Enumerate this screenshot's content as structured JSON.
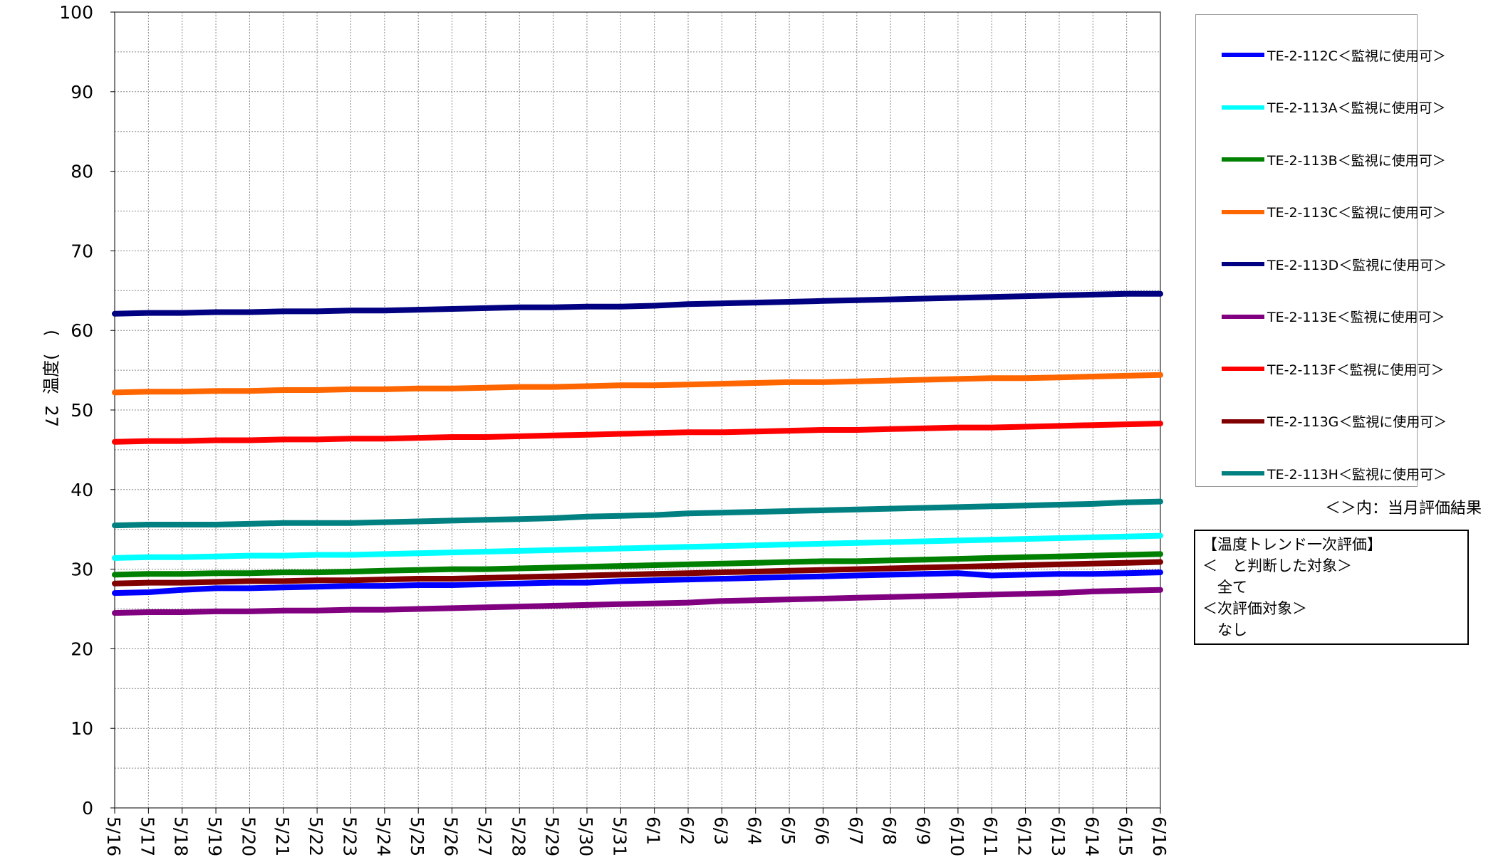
{
  "chart_data": {
    "type": "line",
    "title": "",
    "xlabel": "",
    "ylabel": "温度(　)",
    "ylabel_symbol": "27",
    "ylim": [
      0,
      100
    ],
    "yticks": [
      0,
      10,
      20,
      30,
      40,
      50,
      60,
      70,
      80,
      90,
      100
    ],
    "categories": [
      "5/16",
      "5/17",
      "5/18",
      "5/19",
      "5/20",
      "5/21",
      "5/22",
      "5/23",
      "5/24",
      "5/25",
      "5/26",
      "5/27",
      "5/28",
      "5/29",
      "5/30",
      "5/31",
      "6/1",
      "6/2",
      "6/3",
      "6/4",
      "6/5",
      "6/6",
      "6/7",
      "6/8",
      "6/9",
      "6/10",
      "6/11",
      "6/12",
      "6/13",
      "6/14",
      "6/15",
      "6/16"
    ],
    "grid": true,
    "legend_position": "right",
    "series": [
      {
        "name": "TE-2-112C＜監視に使用可＞",
        "color": "#0000ff",
        "values": [
          27.0,
          27.1,
          27.4,
          27.6,
          27.6,
          27.7,
          27.8,
          27.9,
          27.9,
          28.0,
          28.0,
          28.1,
          28.2,
          28.3,
          28.3,
          28.5,
          28.6,
          28.7,
          28.8,
          28.9,
          29.0,
          29.1,
          29.2,
          29.3,
          29.4,
          29.5,
          29.2,
          29.3,
          29.4,
          29.4,
          29.5,
          29.6
        ]
      },
      {
        "name": "TE-2-113A＜監視に使用可＞",
        "color": "#00ffff",
        "values": [
          31.4,
          31.5,
          31.5,
          31.6,
          31.7,
          31.7,
          31.8,
          31.8,
          31.9,
          32.0,
          32.1,
          32.2,
          32.3,
          32.4,
          32.5,
          32.6,
          32.7,
          32.8,
          32.9,
          33.0,
          33.1,
          33.2,
          33.3,
          33.4,
          33.5,
          33.6,
          33.7,
          33.8,
          33.9,
          34.0,
          34.1,
          34.2
        ]
      },
      {
        "name": "TE-2-113B＜監視に使用可＞",
        "color": "#008000",
        "values": [
          29.3,
          29.4,
          29.4,
          29.5,
          29.5,
          29.6,
          29.6,
          29.7,
          29.8,
          29.9,
          30.0,
          30.0,
          30.1,
          30.2,
          30.3,
          30.4,
          30.5,
          30.6,
          30.7,
          30.8,
          30.9,
          31.0,
          31.0,
          31.1,
          31.2,
          31.3,
          31.4,
          31.5,
          31.6,
          31.7,
          31.8,
          31.9
        ]
      },
      {
        "name": "TE-2-113C＜監視に使用可＞",
        "color": "#ff6600",
        "values": [
          52.2,
          52.3,
          52.3,
          52.4,
          52.4,
          52.5,
          52.5,
          52.6,
          52.6,
          52.7,
          52.7,
          52.8,
          52.9,
          52.9,
          53.0,
          53.1,
          53.1,
          53.2,
          53.3,
          53.4,
          53.5,
          53.5,
          53.6,
          53.7,
          53.8,
          53.9,
          54.0,
          54.0,
          54.1,
          54.2,
          54.3,
          54.4
        ]
      },
      {
        "name": "TE-2-113D＜監視に使用可＞",
        "color": "#000080",
        "values": [
          62.1,
          62.2,
          62.2,
          62.3,
          62.3,
          62.4,
          62.4,
          62.5,
          62.5,
          62.6,
          62.7,
          62.8,
          62.9,
          62.9,
          63.0,
          63.0,
          63.1,
          63.3,
          63.4,
          63.5,
          63.6,
          63.7,
          63.8,
          63.9,
          64.0,
          64.1,
          64.2,
          64.3,
          64.4,
          64.5,
          64.6,
          64.6
        ]
      },
      {
        "name": "TE-2-113E＜監視に使用可＞",
        "color": "#800080",
        "values": [
          24.5,
          24.6,
          24.6,
          24.7,
          24.7,
          24.8,
          24.8,
          24.9,
          24.9,
          25.0,
          25.1,
          25.2,
          25.3,
          25.4,
          25.5,
          25.6,
          25.7,
          25.8,
          26.0,
          26.1,
          26.2,
          26.3,
          26.4,
          26.5,
          26.6,
          26.7,
          26.8,
          26.9,
          27.0,
          27.2,
          27.3,
          27.4
        ]
      },
      {
        "name": "TE-2-113F＜監視に使用可＞",
        "color": "#ff0000",
        "values": [
          46.0,
          46.1,
          46.1,
          46.2,
          46.2,
          46.3,
          46.3,
          46.4,
          46.4,
          46.5,
          46.6,
          46.6,
          46.7,
          46.8,
          46.9,
          47.0,
          47.1,
          47.2,
          47.2,
          47.3,
          47.4,
          47.5,
          47.5,
          47.6,
          47.7,
          47.8,
          47.8,
          47.9,
          48.0,
          48.1,
          48.2,
          48.3
        ]
      },
      {
        "name": "TE-2-113G＜監視に使用可＞",
        "color": "#800000",
        "values": [
          28.2,
          28.3,
          28.3,
          28.4,
          28.5,
          28.5,
          28.6,
          28.6,
          28.7,
          28.8,
          28.8,
          28.9,
          29.0,
          29.1,
          29.2,
          29.3,
          29.4,
          29.5,
          29.6,
          29.7,
          29.8,
          29.9,
          30.0,
          30.1,
          30.2,
          30.3,
          30.4,
          30.5,
          30.6,
          30.7,
          30.8,
          30.9
        ]
      },
      {
        "name": "TE-2-113H＜監視に使用可＞",
        "color": "#008080",
        "values": [
          35.5,
          35.6,
          35.6,
          35.6,
          35.7,
          35.8,
          35.8,
          35.8,
          35.9,
          36.0,
          36.1,
          36.2,
          36.3,
          36.4,
          36.6,
          36.7,
          36.8,
          37.0,
          37.1,
          37.2,
          37.3,
          37.4,
          37.5,
          37.6,
          37.7,
          37.8,
          37.9,
          38.0,
          38.1,
          38.2,
          38.4,
          38.5
        ]
      }
    ]
  },
  "legend_note": "＜＞内：当月評価結果",
  "evaluation": {
    "lines": [
      "【温度トレンド一次評価】",
      "＜　と判断した対象＞",
      "　全て",
      "＜次評価対象＞",
      "　なし"
    ]
  }
}
